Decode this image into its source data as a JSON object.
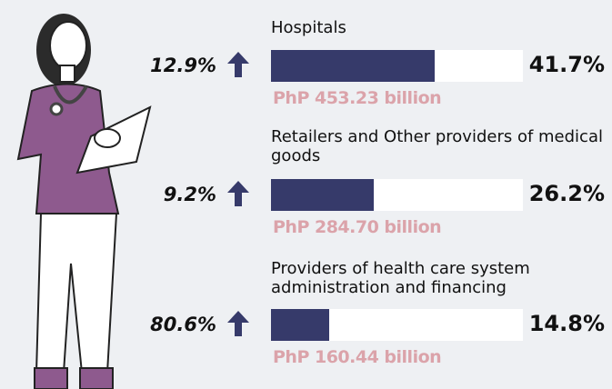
{
  "chart_data": {
    "type": "bar",
    "orientation": "horizontal",
    "categories": [
      "Hospitals",
      "Retailers and Other providers of medical goods",
      "Providers of health care system administration and financing"
    ],
    "values": [
      41.7,
      26.2,
      14.8
    ],
    "value_labels": [
      "41.7%",
      "26.2%",
      "14.8%"
    ],
    "growth_labels": [
      "12.9%",
      "9.2%",
      "80.6%"
    ],
    "amount_labels": [
      "PhP 453.23 billion",
      "PhP 284.70 billion",
      "PhP 160.44 billion"
    ],
    "color": "#363a6a",
    "xlim": [
      0,
      64
    ]
  }
}
